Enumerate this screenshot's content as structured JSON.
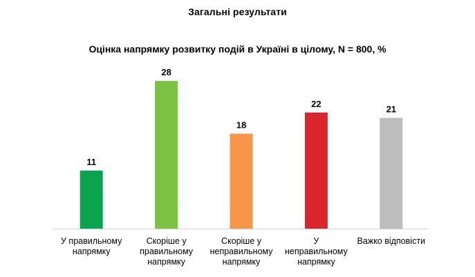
{
  "header": {
    "section_title": "Загальні результати"
  },
  "chart_data": {
    "type": "bar",
    "title": "Оцінка напрямку розвитку подій в Україні в цілому, N = 800, %",
    "categories": [
      [
        "У правильному",
        "напрямку"
      ],
      [
        "Скоріше у",
        "правильному",
        "напрямку"
      ],
      [
        "Скоріше у",
        "неправильному",
        "напрямку"
      ],
      [
        "У",
        "неправильному",
        "напрямку"
      ],
      [
        "Важко відповісти"
      ]
    ],
    "values": [
      11,
      28,
      18,
      22,
      21
    ],
    "colors": [
      "#0aa34f",
      "#7dc242",
      "#f7964a",
      "#d9252b",
      "#bdbdbd"
    ],
    "xlabel": "",
    "ylabel": "",
    "ylim": [
      0,
      30
    ],
    "grid": false,
    "legend": "none"
  }
}
